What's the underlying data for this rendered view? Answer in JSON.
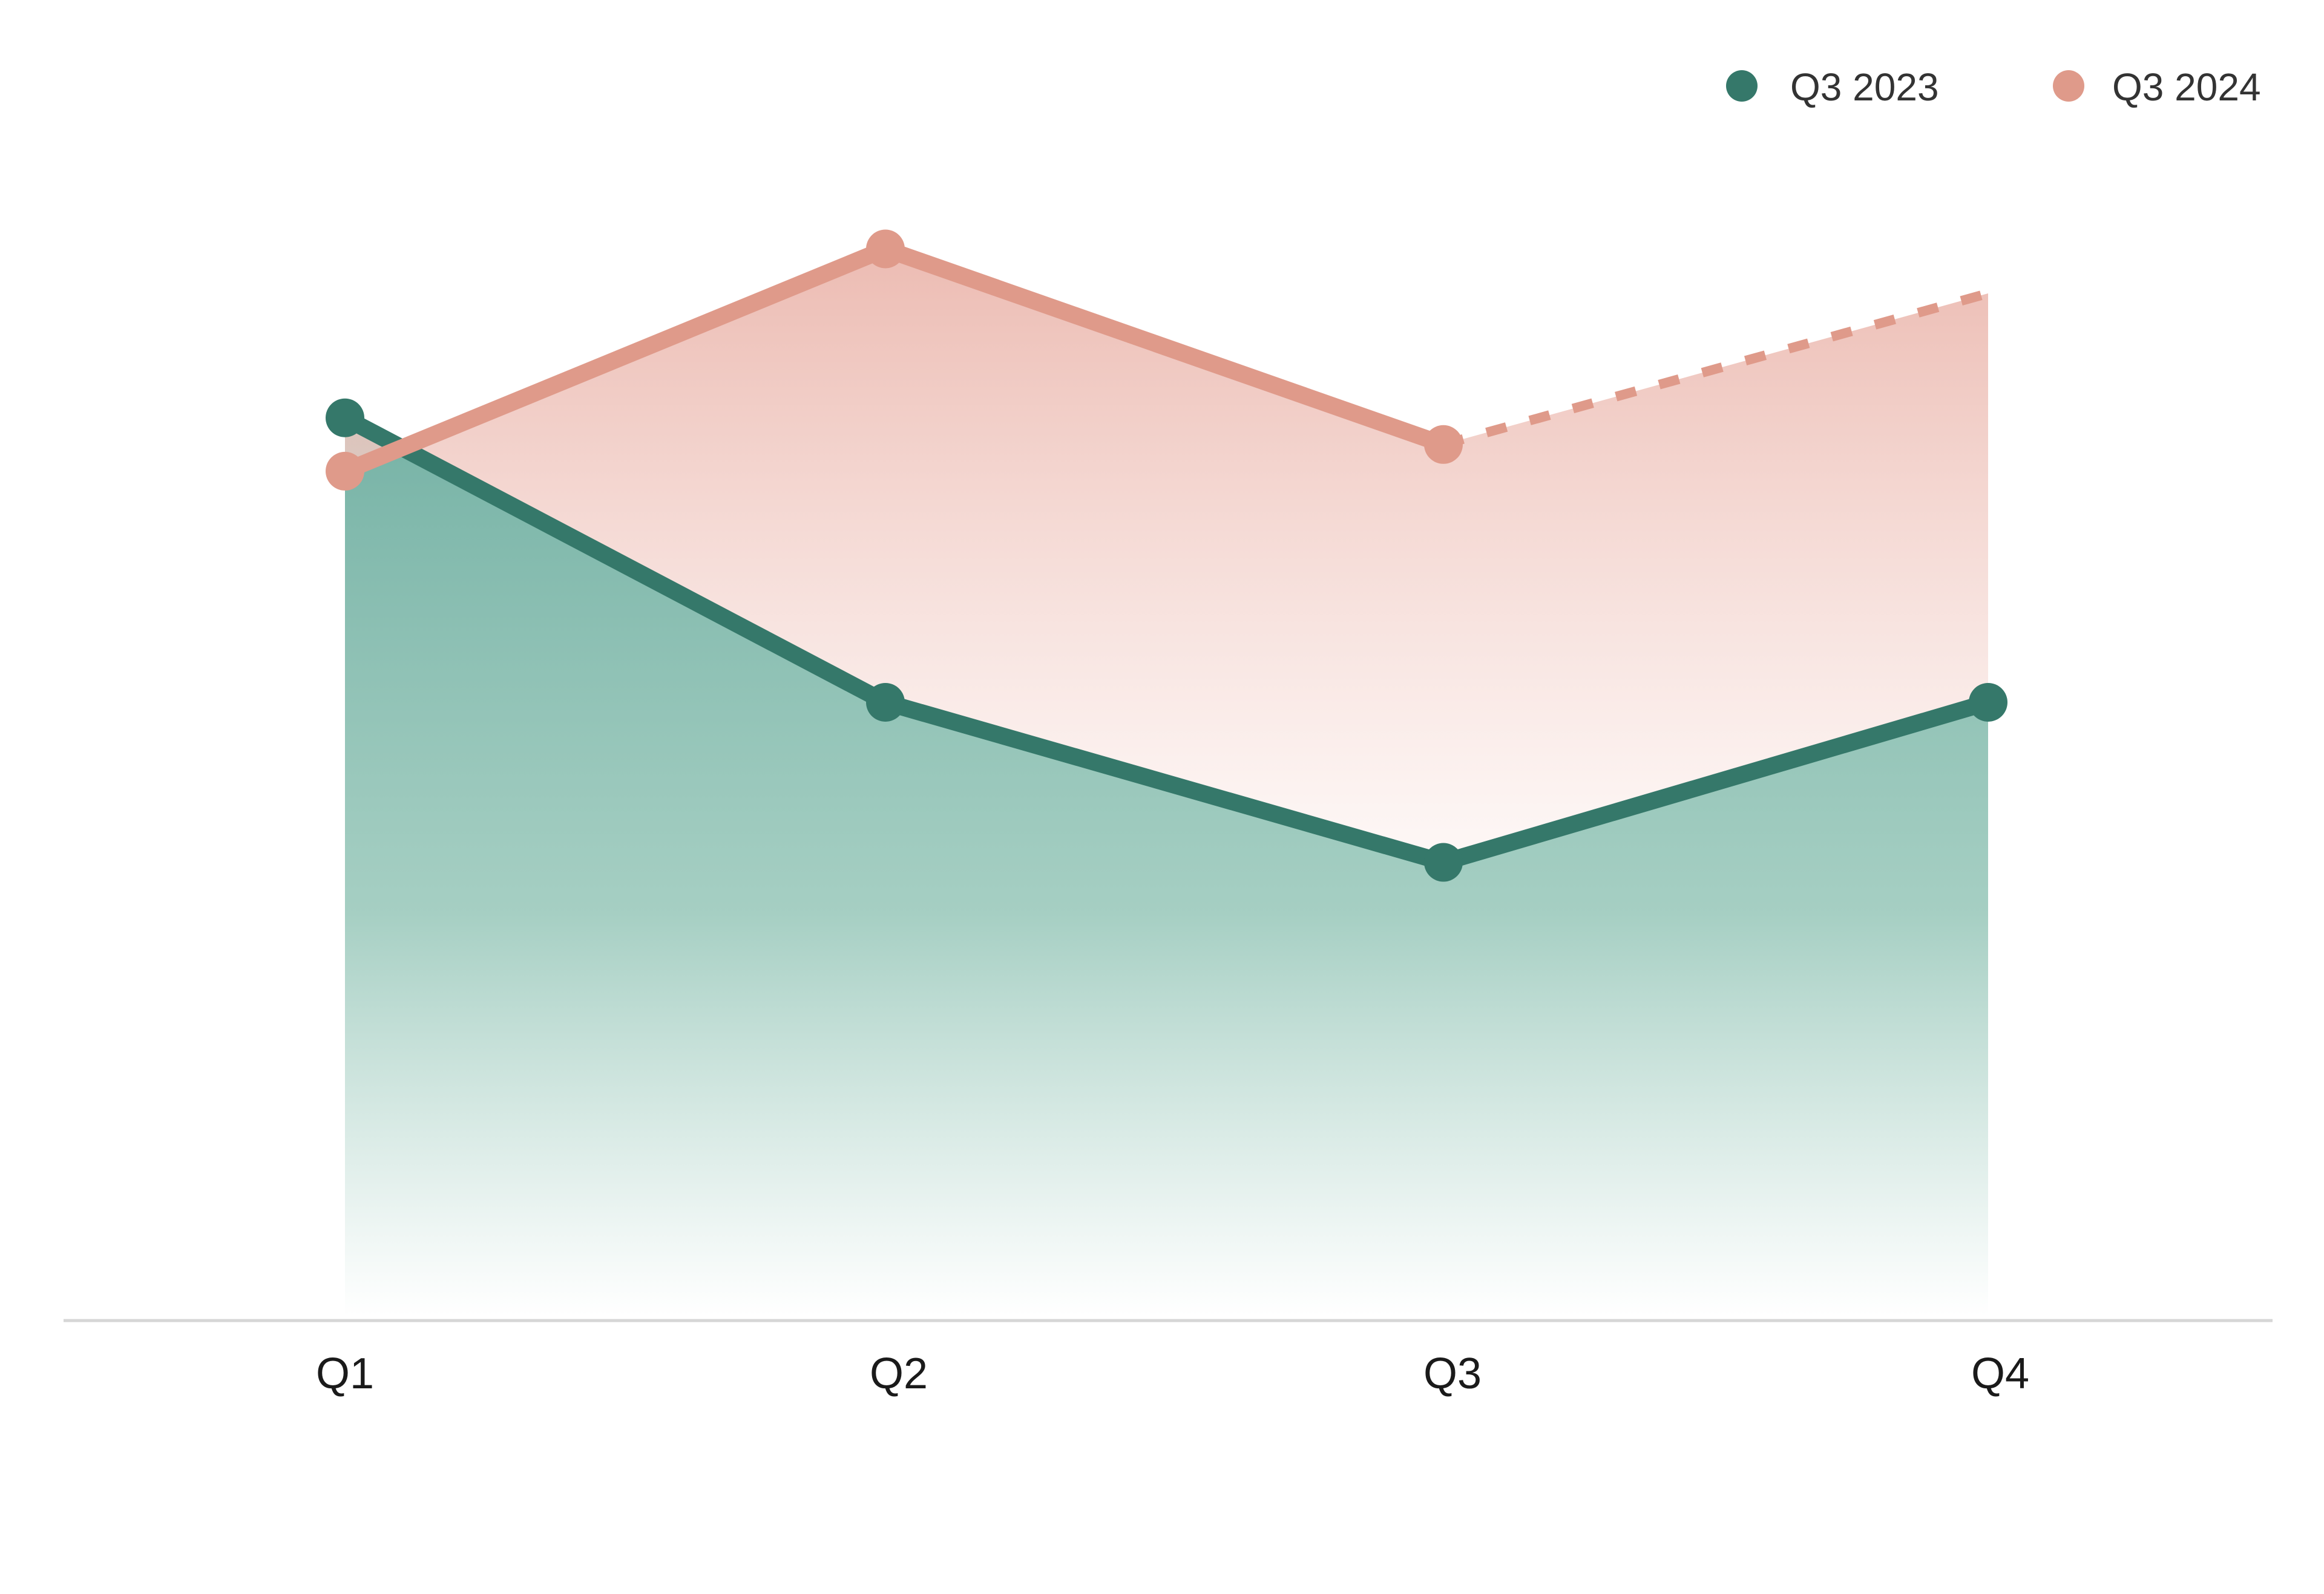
{
  "chart_data": {
    "type": "area",
    "categories": [
      "Q1",
      "Q2",
      "Q3",
      "Q4"
    ],
    "series": [
      {
        "name": "Q3 2023",
        "color": "#35786a",
        "values": [
          101,
          69,
          51,
          69
        ]
      },
      {
        "name": "Q3 2024",
        "color": "#df9a8a",
        "values": [
          95,
          120,
          98,
          115
        ],
        "projected_from_index": 2
      }
    ],
    "ylim": [
      0,
      148
    ],
    "grid": false,
    "legend": "top-right",
    "title": "",
    "xlabel": "",
    "ylabel": ""
  }
}
